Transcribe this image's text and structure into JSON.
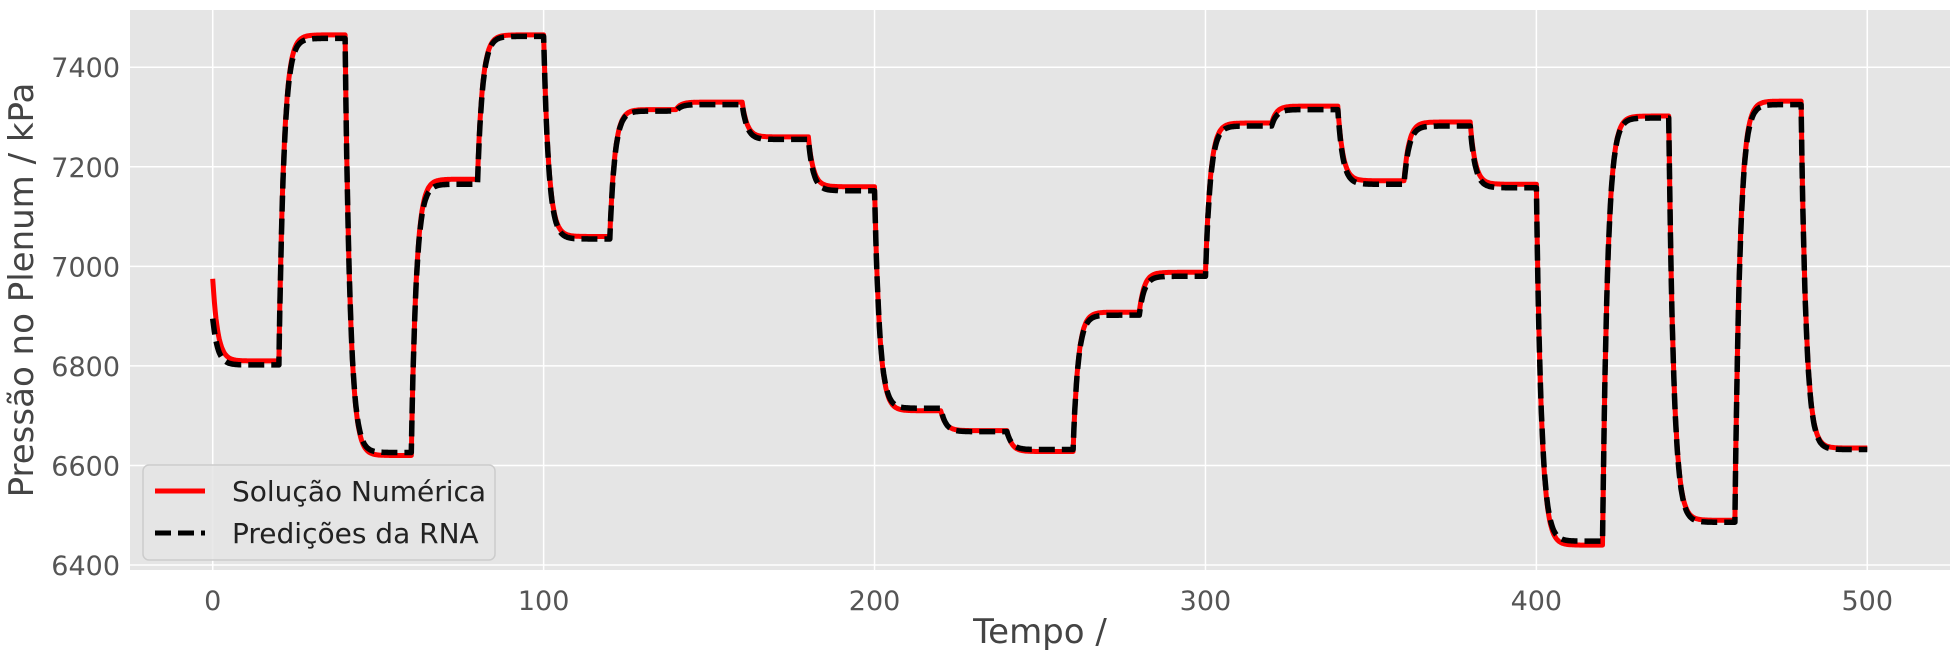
{
  "chart_data": {
    "type": "line",
    "xlabel": "Tempo /",
    "ylabel": "Pressão no Plenum / kPa",
    "xlim": [
      -25,
      525
    ],
    "ylim": [
      6390,
      7515
    ],
    "xticks": [
      0,
      100,
      200,
      300,
      400,
      500
    ],
    "yticks": [
      6400,
      6600,
      6800,
      7000,
      7200,
      7400
    ],
    "grid": true,
    "background": "#e5e5e5",
    "legend_position": "lower-left",
    "series": [
      {
        "name": "Solução Numérica",
        "color": "#ff0000",
        "style": "solid",
        "start_value": 6975,
        "steps": [
          {
            "t": 0,
            "v": 6810
          },
          {
            "t": 20,
            "v": 7465
          },
          {
            "t": 40,
            "v": 6620
          },
          {
            "t": 60,
            "v": 7175
          },
          {
            "t": 80,
            "v": 7465
          },
          {
            "t": 100,
            "v": 7060
          },
          {
            "t": 120,
            "v": 7315
          },
          {
            "t": 140,
            "v": 7330
          },
          {
            "t": 160,
            "v": 7260
          },
          {
            "t": 180,
            "v": 7160
          },
          {
            "t": 200,
            "v": 6710
          },
          {
            "t": 220,
            "v": 6670
          },
          {
            "t": 240,
            "v": 6628
          },
          {
            "t": 260,
            "v": 6908
          },
          {
            "t": 280,
            "v": 6988
          },
          {
            "t": 300,
            "v": 7288
          },
          {
            "t": 320,
            "v": 7322
          },
          {
            "t": 340,
            "v": 7172
          },
          {
            "t": 360,
            "v": 7290
          },
          {
            "t": 380,
            "v": 7165
          },
          {
            "t": 400,
            "v": 6440
          },
          {
            "t": 420,
            "v": 7302
          },
          {
            "t": 440,
            "v": 6490
          },
          {
            "t": 460,
            "v": 7332
          },
          {
            "t": 480,
            "v": 6635
          }
        ],
        "end_t": 500
      },
      {
        "name": "Predições da RNA",
        "color": "#000000",
        "style": "dashed",
        "start_value": 6895,
        "steps": [
          {
            "t": 0,
            "v": 6802
          },
          {
            "t": 20,
            "v": 7458
          },
          {
            "t": 40,
            "v": 6626
          },
          {
            "t": 60,
            "v": 7165
          },
          {
            "t": 80,
            "v": 7462
          },
          {
            "t": 100,
            "v": 7055
          },
          {
            "t": 120,
            "v": 7312
          },
          {
            "t": 140,
            "v": 7325
          },
          {
            "t": 160,
            "v": 7255
          },
          {
            "t": 180,
            "v": 7152
          },
          {
            "t": 200,
            "v": 6715
          },
          {
            "t": 220,
            "v": 6668
          },
          {
            "t": 240,
            "v": 6632
          },
          {
            "t": 260,
            "v": 6902
          },
          {
            "t": 280,
            "v": 6980
          },
          {
            "t": 300,
            "v": 7282
          },
          {
            "t": 320,
            "v": 7315
          },
          {
            "t": 340,
            "v": 7165
          },
          {
            "t": 360,
            "v": 7282
          },
          {
            "t": 380,
            "v": 7158
          },
          {
            "t": 400,
            "v": 6448
          },
          {
            "t": 420,
            "v": 7298
          },
          {
            "t": 440,
            "v": 6486
          },
          {
            "t": 460,
            "v": 7325
          },
          {
            "t": 480,
            "v": 6632
          }
        ],
        "end_t": 500
      }
    ]
  }
}
